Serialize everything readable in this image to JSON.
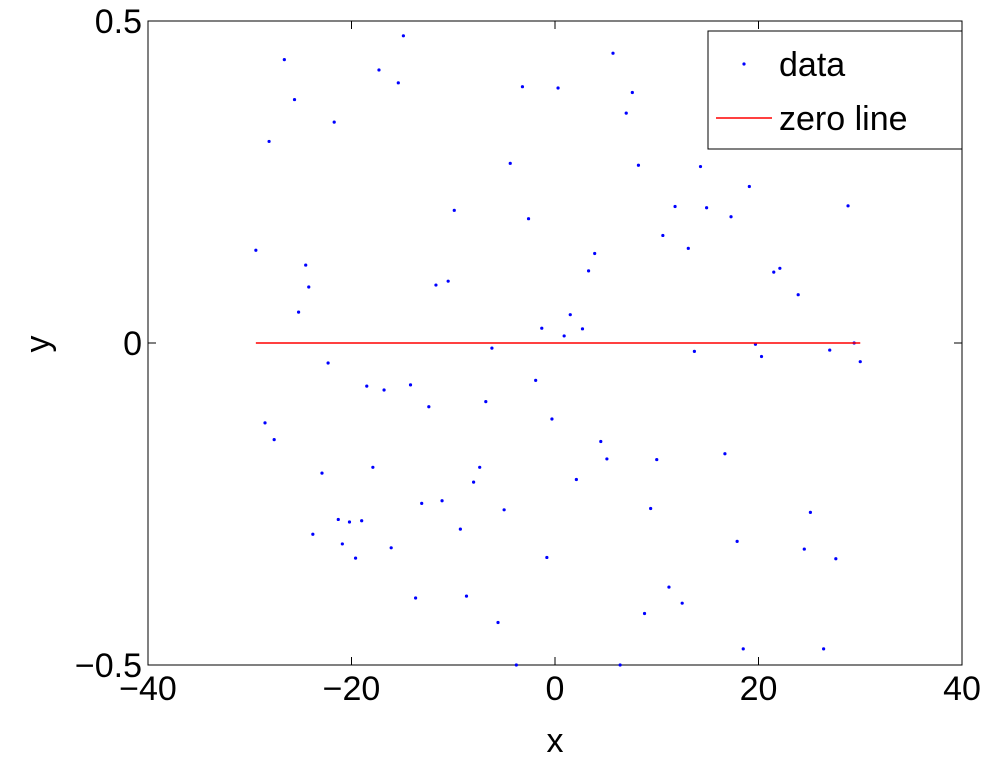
{
  "chart_data": {
    "type": "scatter",
    "xlabel": "x",
    "ylabel": "y",
    "xlim": [
      -40,
      40
    ],
    "ylim": [
      -0.5,
      0.5
    ],
    "xticks": [
      -40,
      -20,
      0,
      20,
      40
    ],
    "yticks": [
      -0.5,
      0,
      0.5
    ],
    "xtick_labels": [
      "−40",
      "−20",
      "0",
      "20",
      "40"
    ],
    "ytick_labels": [
      "−0.5",
      "0",
      "0.5"
    ],
    "legend_position": "top-right",
    "series": [
      {
        "name": "data",
        "style": "points",
        "color": "#0000ff",
        "x": [
          -29.4,
          -28.5,
          -28.1,
          -27.6,
          -26.6,
          -25.6,
          -25.2,
          -24.5,
          -24.2,
          -23.8,
          -22.9,
          -22.3,
          -21.7,
          -21.3,
          -20.9,
          -20.2,
          -19.6,
          -19.0,
          -18.5,
          -17.9,
          -17.3,
          -16.8,
          -16.1,
          -15.4,
          -14.9,
          -14.2,
          -13.7,
          -13.1,
          -12.4,
          -11.7,
          -11.1,
          -10.5,
          -9.9,
          -9.3,
          -8.7,
          -8.0,
          -7.4,
          -6.8,
          -6.2,
          -5.6,
          -5.0,
          -4.4,
          -3.8,
          -3.2,
          -2.6,
          -1.9,
          -1.3,
          -0.8,
          -0.3,
          0.3,
          0.9,
          1.5,
          2.1,
          2.7,
          3.3,
          3.9,
          4.5,
          5.1,
          5.7,
          6.4,
          7.0,
          7.6,
          8.2,
          8.8,
          9.4,
          10.0,
          10.6,
          11.2,
          11.8,
          12.5,
          13.1,
          13.7,
          14.3,
          14.9,
          16.7,
          17.3,
          17.9,
          18.5,
          19.1,
          19.7,
          20.3,
          21.5,
          22.1,
          23.3,
          23.9,
          24.5,
          25.1,
          26.4,
          27.0,
          27.6,
          28.8,
          29.4,
          30.0
        ],
        "y": [
          0.144,
          -0.124,
          0.313,
          -0.15,
          0.44,
          0.378,
          0.048,
          0.121,
          0.087,
          -0.297,
          -0.202,
          -0.031,
          0.343,
          -0.274,
          -0.312,
          -0.278,
          -0.334,
          -0.276,
          -0.067,
          -0.193,
          0.424,
          -0.073,
          -0.318,
          0.404,
          0.477,
          -0.065,
          -0.396,
          -0.249,
          -0.099,
          0.09,
          -0.245,
          0.096,
          0.206,
          -0.289,
          -0.393,
          -0.216,
          -0.193,
          -0.091,
          -0.008,
          -0.434,
          -0.259,
          0.279,
          -0.5,
          0.398,
          0.193,
          -0.058,
          0.023,
          -0.333,
          -0.118,
          0.396,
          0.011,
          0.044,
          -0.212,
          0.022,
          0.112,
          0.139,
          -0.153,
          -0.18,
          0.45,
          -0.5,
          0.357,
          0.389,
          0.276,
          -0.42,
          -0.257,
          -0.181,
          0.167,
          -0.379,
          0.212,
          -0.404,
          0.147,
          -0.013,
          0.274,
          0.21,
          -0.172,
          0.196,
          -0.308,
          -0.475,
          0.243,
          -0.002,
          -0.021,
          0.11,
          0.116,
          0.308,
          0.075,
          -0.32,
          -0.263,
          -0.475,
          -0.011,
          -0.335,
          0.213,
          0.0,
          -0.029
        ]
      },
      {
        "name": "zero line",
        "style": "line",
        "color": "#ff0000",
        "x": [
          -29.4,
          30.0
        ],
        "y": [
          0,
          0
        ]
      }
    ]
  }
}
